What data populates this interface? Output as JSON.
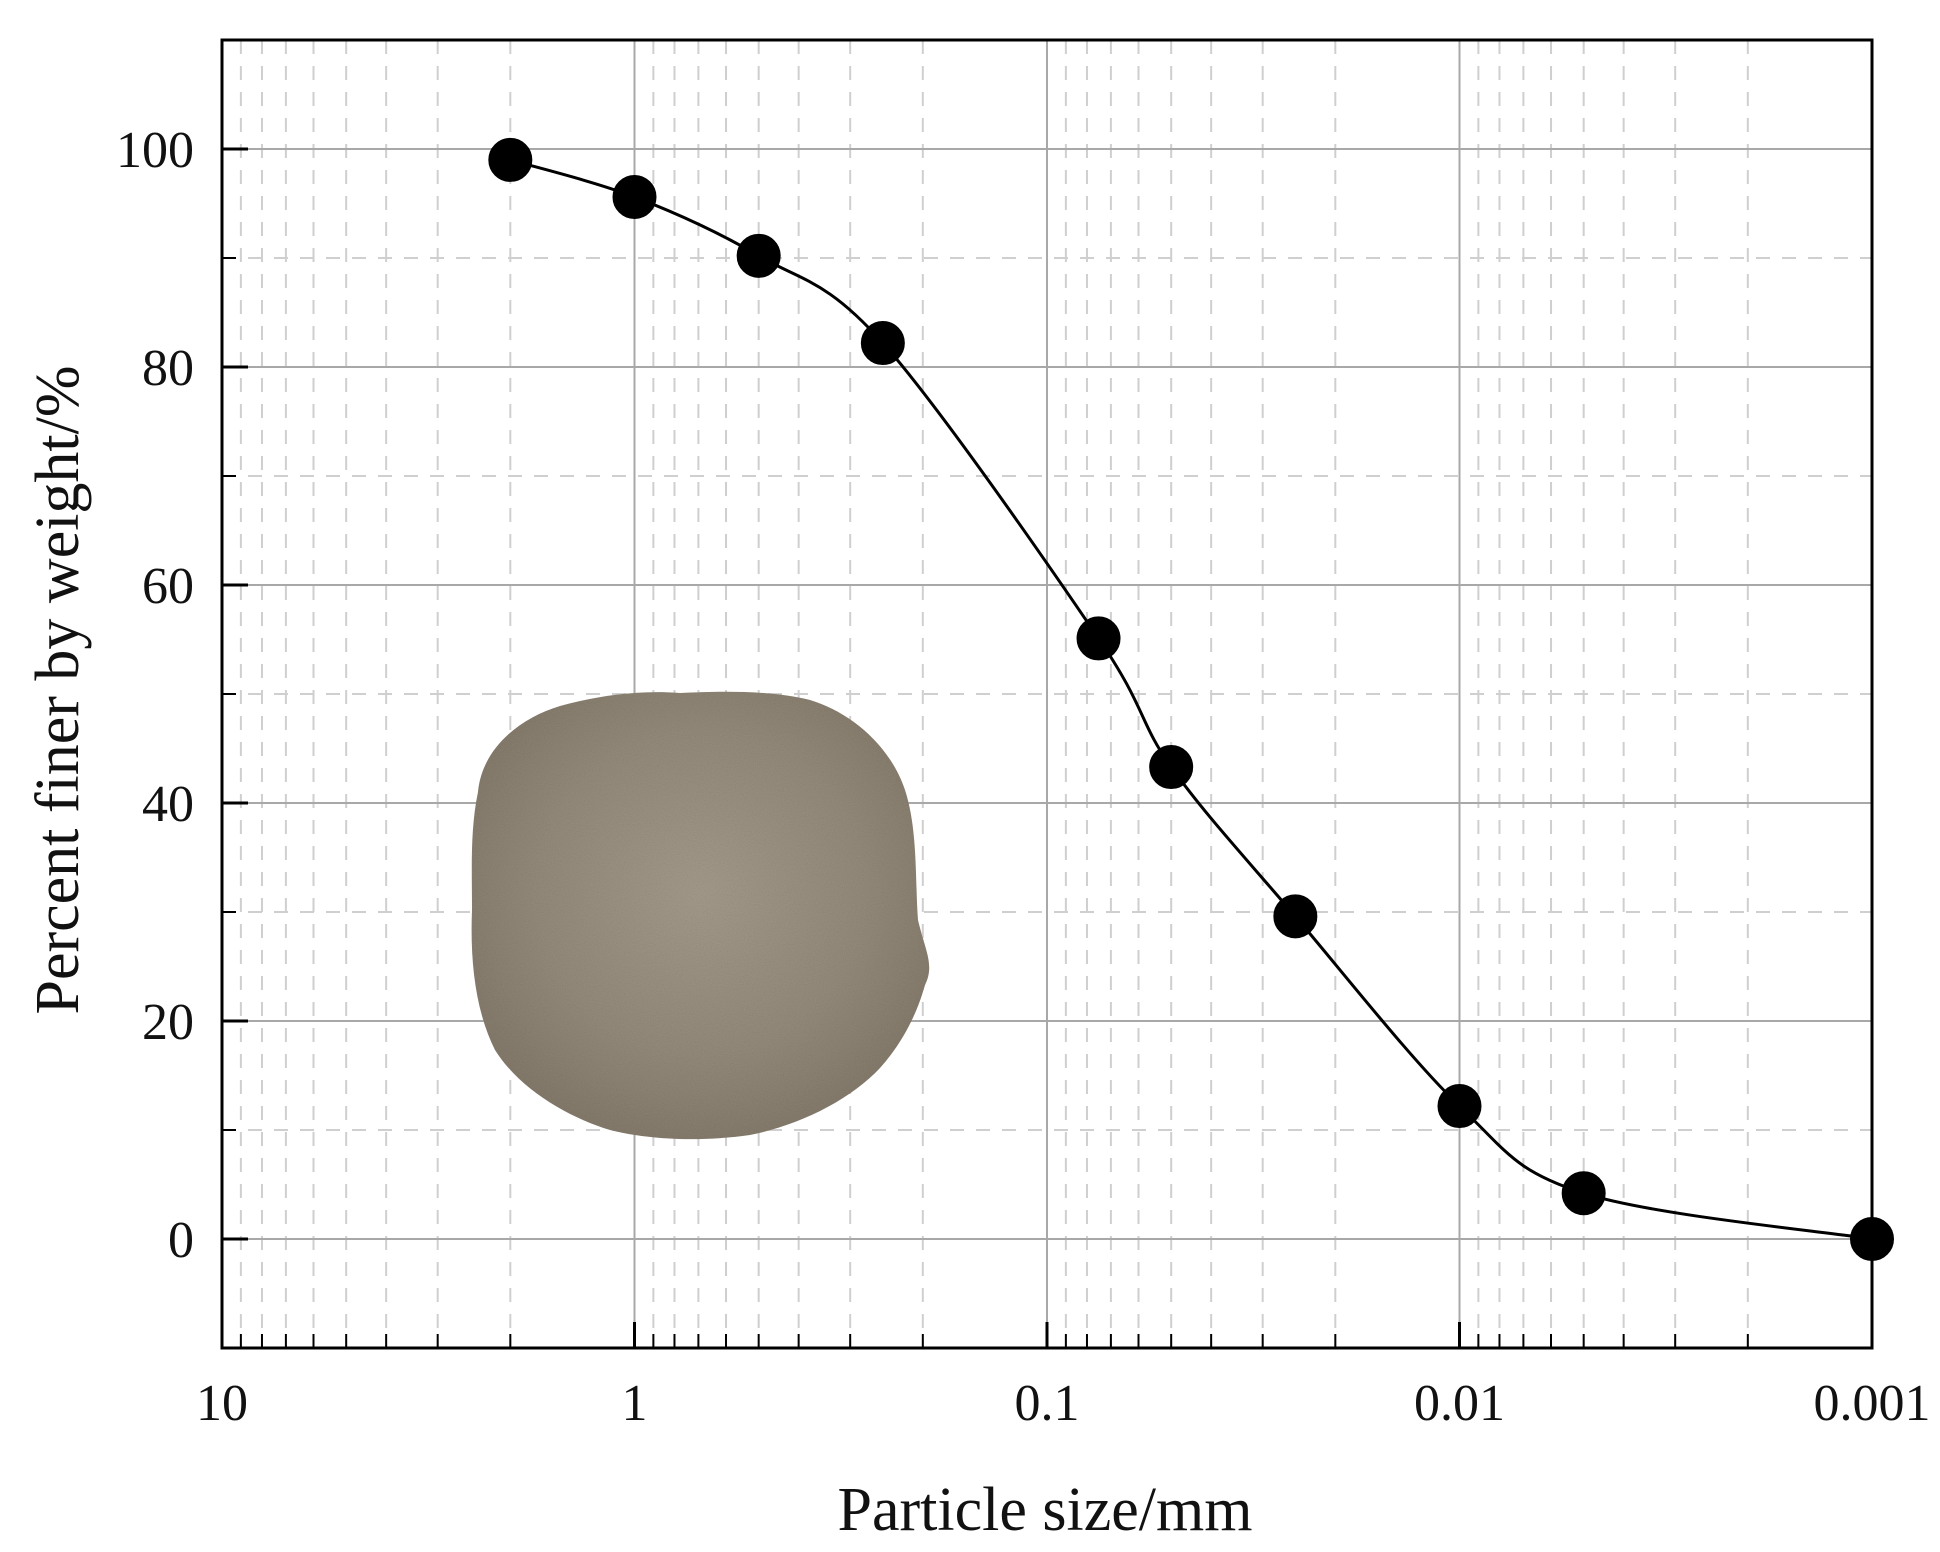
{
  "chart_data": {
    "type": "scatter",
    "title": "",
    "xlabel": "Particle size/mm",
    "ylabel": "Percent finer by weight/%",
    "x_scale": "log",
    "x_reversed": true,
    "xlim": [
      10,
      0.001
    ],
    "ylim": [
      -10,
      110
    ],
    "x_ticks": [
      10,
      1,
      0.1,
      0.01,
      0.001
    ],
    "x_tick_labels": [
      "10",
      "1",
      "0.1",
      "0.01",
      "0.001"
    ],
    "y_ticks": [
      0,
      20,
      40,
      60,
      80,
      100
    ],
    "y_tick_labels": [
      "0",
      "20",
      "40",
      "60",
      "80",
      "100"
    ],
    "grid": true,
    "series": [
      {
        "x": [
          2.0,
          1.0,
          0.5,
          0.25,
          0.075,
          0.05,
          0.025,
          0.01,
          0.005,
          0.001
        ],
        "y": [
          99,
          95.6,
          90.2,
          82.2,
          55.1,
          43.3,
          29.6,
          12.2,
          4.2,
          0
        ],
        "marker": "circle",
        "color": "#000000",
        "fit_curve": true
      }
    ],
    "inset_image": "soil-powder-photo"
  }
}
